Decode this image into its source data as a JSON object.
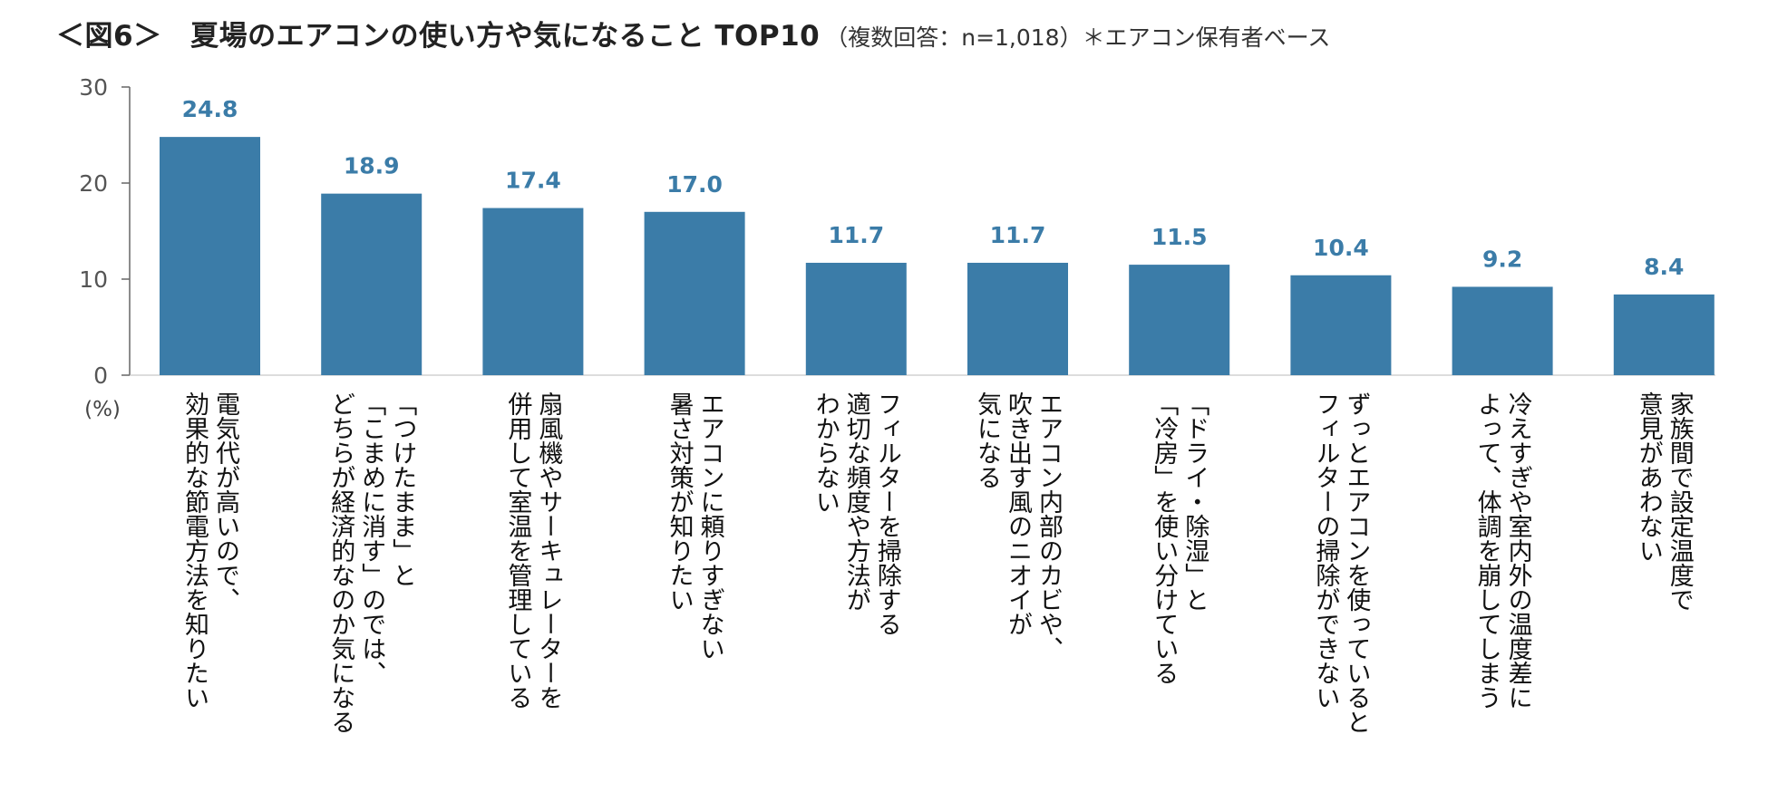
{
  "header": {
    "title": "＜図6＞　夏場のエアコンの使い方や気になること TOP10",
    "subtitle": "（複数回答：n=1,018）＊エアコン保有者ベース"
  },
  "colors": {
    "bar": "#3b7ca8",
    "value_label": "#3b7ca8",
    "axis": "#666666"
  },
  "chart_data": {
    "type": "bar",
    "title": "＜図6＞　夏場のエアコンの使い方や気になること TOP10",
    "ylabel": "(%)",
    "ylim": [
      0,
      30
    ],
    "yticks": [
      0,
      10,
      20,
      30
    ],
    "grid": false,
    "categories": [
      "電気代が高いので、\n効果的な節電方法を知りたい",
      "「つけたまま」と\n「こまめに消す」のでは、\nどちらが経済的なのか気になる",
      "扇風機やサーキュレーターを\n併用して室温を管理している",
      "エアコンに頼りすぎない\n暑さ対策が知りたい",
      "フィルターを掃除する\n適切な頻度や方法が\nわからない",
      "エアコン内部のカビや、\n吹き出す風のニオイが\n気になる",
      "「ドライ・除湿」と\n「冷房」を使い分けている",
      "ずっとエアコンを使っていると\nフィルターの掃除ができない",
      "冷えすぎや室内外の温度差に\nよって、体調を崩してしまう",
      "家族間で設定温度で\n意見があわない"
    ],
    "values": [
      24.8,
      18.9,
      17.4,
      17.0,
      11.7,
      11.7,
      11.5,
      10.4,
      9.2,
      8.4
    ],
    "value_labels": [
      "24.8",
      "18.9",
      "17.4",
      "17.0",
      "11.7",
      "11.7",
      "11.5",
      "10.4",
      "9.2",
      "8.4"
    ]
  }
}
